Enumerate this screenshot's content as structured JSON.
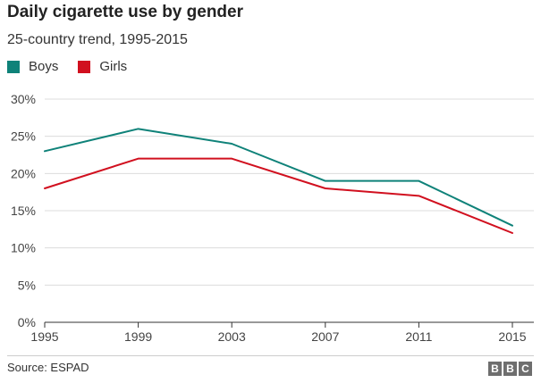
{
  "header": {
    "title": "Daily cigarette use by gender",
    "subtitle": "25-country trend, 1995-2015"
  },
  "legend": {
    "items": [
      {
        "label": "Boys",
        "color": "#0f8279"
      },
      {
        "label": "Girls",
        "color": "#d1101f"
      }
    ]
  },
  "footer": {
    "source": "Source: ESPAD",
    "logo_letters": [
      "B",
      "B",
      "C"
    ]
  },
  "chart_data": {
    "type": "line",
    "title": "Daily cigarette use by gender",
    "subtitle": "25-country trend, 1995-2015",
    "x": [
      1995,
      1999,
      2003,
      2007,
      2011,
      2015
    ],
    "x_tick_labels": [
      "1995",
      "1999",
      "2003",
      "2007",
      "2011",
      "2015"
    ],
    "y_tick_values": [
      0,
      5,
      10,
      15,
      20,
      25,
      30
    ],
    "y_tick_labels": [
      "0%",
      "5%",
      "10%",
      "15%",
      "20%",
      "25%",
      "30%"
    ],
    "ylim": [
      0,
      30
    ],
    "xlim": [
      1995,
      2015
    ],
    "grid": "horizontal",
    "legend_position": "top-left",
    "series": [
      {
        "name": "Boys",
        "color": "#0f8279",
        "values": [
          23,
          26,
          24,
          19,
          19,
          13
        ]
      },
      {
        "name": "Girls",
        "color": "#d1101f",
        "values": [
          18,
          22,
          22,
          18,
          17,
          12
        ]
      }
    ]
  }
}
